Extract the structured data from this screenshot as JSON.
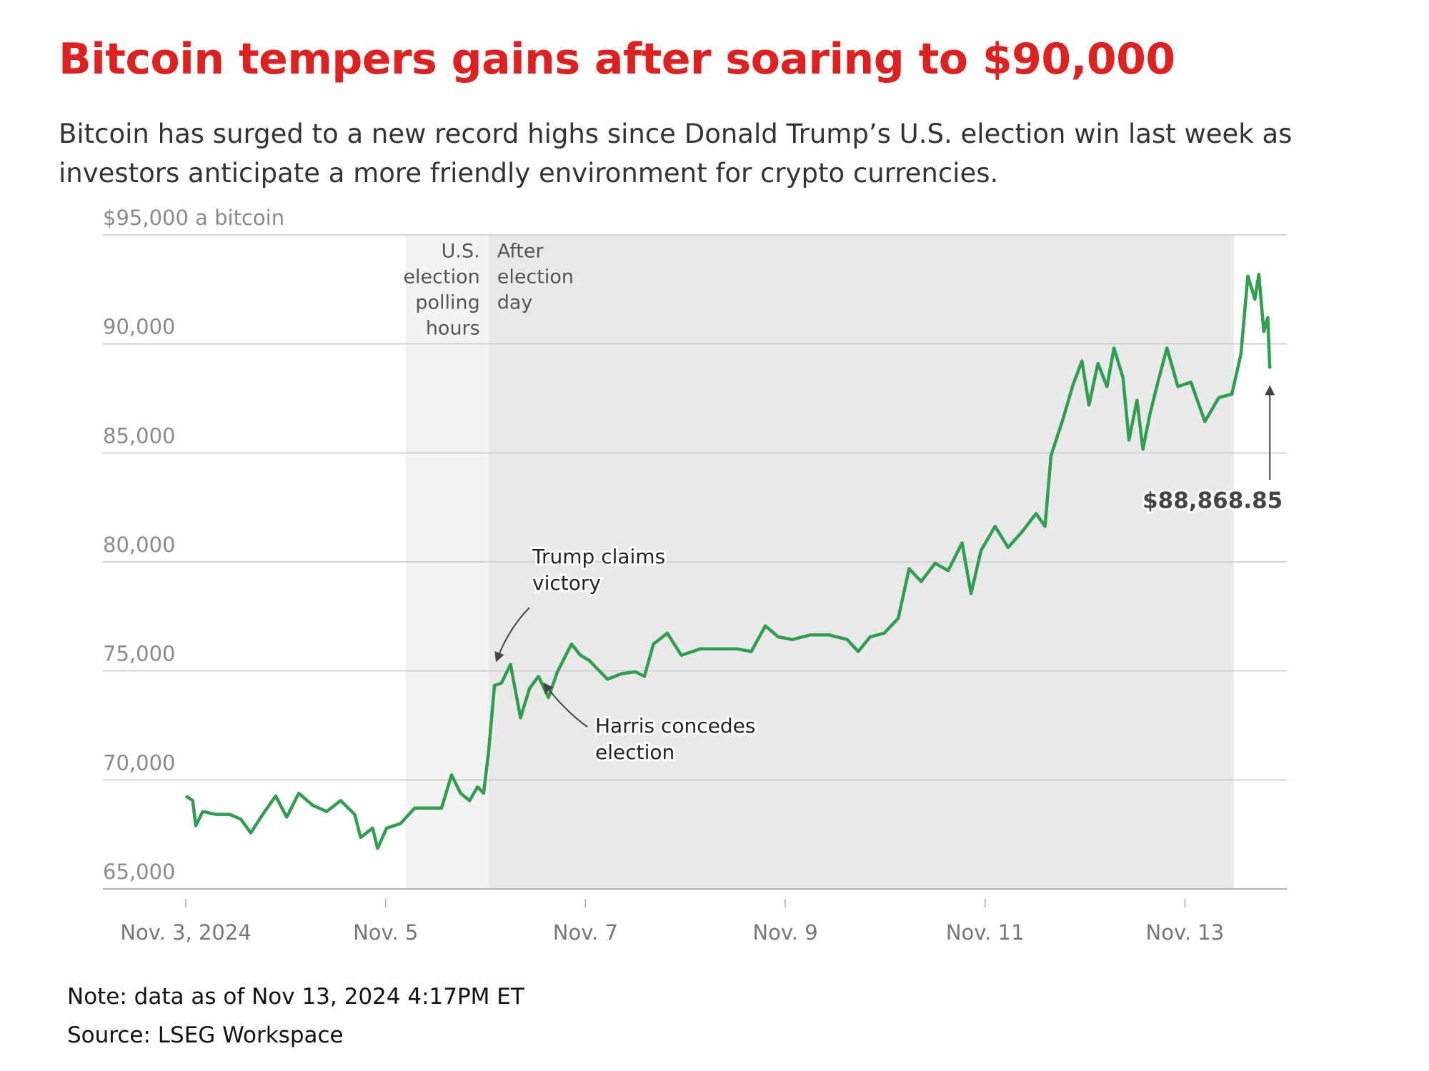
{
  "chart_data": {
    "type": "line",
    "title": "Bitcoin tempers gains after soaring to $90,000",
    "subtitle": "Bitcoin has surged to a new record highs since Donald Trump’s U.S. election win last week as investors anticipate a more friendly environment for crypto currencies.",
    "note": "Note: data as of Nov 13, 2024 4:17PM ET",
    "source": "Source: LSEG Workspace",
    "x": [
      3.0,
      3.07,
      3.1,
      3.17,
      3.3,
      3.44,
      3.55,
      3.65,
      3.77,
      3.9,
      4.01,
      4.13,
      4.27,
      4.41,
      4.55,
      4.69,
      4.75,
      4.87,
      4.92,
      5.01,
      5.15,
      5.29,
      5.43,
      5.56,
      5.66,
      5.75,
      5.84,
      5.92,
      5.98,
      6.03,
      6.09,
      6.16,
      6.25,
      6.35,
      6.44,
      6.53,
      6.63,
      6.72,
      6.86,
      6.95,
      7.04,
      7.22,
      7.36,
      7.5,
      7.59,
      7.68,
      7.82,
      7.96,
      8.15,
      8.33,
      8.52,
      8.66,
      8.8,
      8.93,
      9.07,
      9.25,
      9.44,
      9.62,
      9.73,
      9.85,
      9.99,
      10.13,
      10.24,
      10.36,
      10.5,
      10.63,
      10.77,
      10.86,
      10.96,
      11.1,
      11.23,
      11.37,
      11.51,
      11.6,
      11.66,
      11.78,
      11.88,
      11.97,
      12.04,
      12.13,
      12.22,
      12.29,
      12.38,
      12.44,
      12.52,
      12.58,
      12.65,
      12.73,
      12.82,
      12.93,
      13.06,
      13.2,
      13.34,
      13.47,
      13.56,
      13.63,
      13.7,
      13.74,
      13.79,
      13.83,
      13.85
    ],
    "series": [
      {
        "name": "Bitcoin",
        "color": "#2e9e4f",
        "values": [
          69260,
          69050,
          67900,
          68550,
          68420,
          68420,
          68200,
          67570,
          68420,
          69260,
          68290,
          69390,
          68840,
          68550,
          69050,
          68420,
          67360,
          67790,
          66860,
          67790,
          68000,
          68710,
          68710,
          68710,
          70230,
          69390,
          69050,
          69680,
          69390,
          71250,
          74330,
          74450,
          75300,
          72850,
          74200,
          74750,
          73780,
          74960,
          76230,
          75720,
          75470,
          74620,
          74870,
          74960,
          74750,
          76230,
          76730,
          75720,
          76010,
          76010,
          76010,
          75890,
          77070,
          76560,
          76440,
          76650,
          76650,
          76440,
          75890,
          76560,
          76730,
          77410,
          79690,
          79100,
          79940,
          79600,
          80870,
          78550,
          80530,
          81630,
          80660,
          81380,
          82220,
          81630,
          84880,
          86560,
          88130,
          89220,
          87200,
          89100,
          88040,
          89810,
          88460,
          85590,
          87410,
          85170,
          86780,
          88250,
          89810,
          88040,
          88250,
          86440,
          87540,
          87700,
          89520,
          93110,
          92050,
          93190,
          90570,
          91210,
          88868.85
        ]
      }
    ],
    "xlim": [
      2.17,
      14.02
    ],
    "xticks": [
      {
        "value": 3,
        "label": "Nov. 3, 2024"
      },
      {
        "value": 5,
        "label": "Nov. 5"
      },
      {
        "value": 7,
        "label": "Nov. 7"
      },
      {
        "value": 9,
        "label": "Nov. 9"
      },
      {
        "value": 11,
        "label": "Nov. 11"
      },
      {
        "value": 13,
        "label": "Nov. 13"
      }
    ],
    "ylim": [
      65000,
      95000
    ],
    "yticks": [
      {
        "value": 65000,
        "label": "65,000"
      },
      {
        "value": 70000,
        "label": "70,000"
      },
      {
        "value": 75000,
        "label": "75,000"
      },
      {
        "value": 80000,
        "label": "80,000"
      },
      {
        "value": 85000,
        "label": "85,000"
      },
      {
        "value": 90000,
        "label": "90,000"
      },
      {
        "value": 95000,
        "label": "$95,000 a bitcoin"
      }
    ],
    "grid": true,
    "shaded_regions": [
      {
        "label": [
          "U.S.",
          "election",
          "polling",
          "hours"
        ],
        "x": [
          5.2,
          6.03
        ],
        "color": "#f3f3f3"
      },
      {
        "label": [
          "After",
          "election",
          "day"
        ],
        "x": [
          6.03,
          13.49
        ],
        "color": "#e9e9e9"
      }
    ],
    "annotations": [
      {
        "lines": [
          "Trump claims",
          "victory"
        ]
      },
      {
        "lines": [
          "Harris concedes",
          "election"
        ]
      },
      {
        "lines": [
          "$88,868.85"
        ]
      }
    ]
  }
}
